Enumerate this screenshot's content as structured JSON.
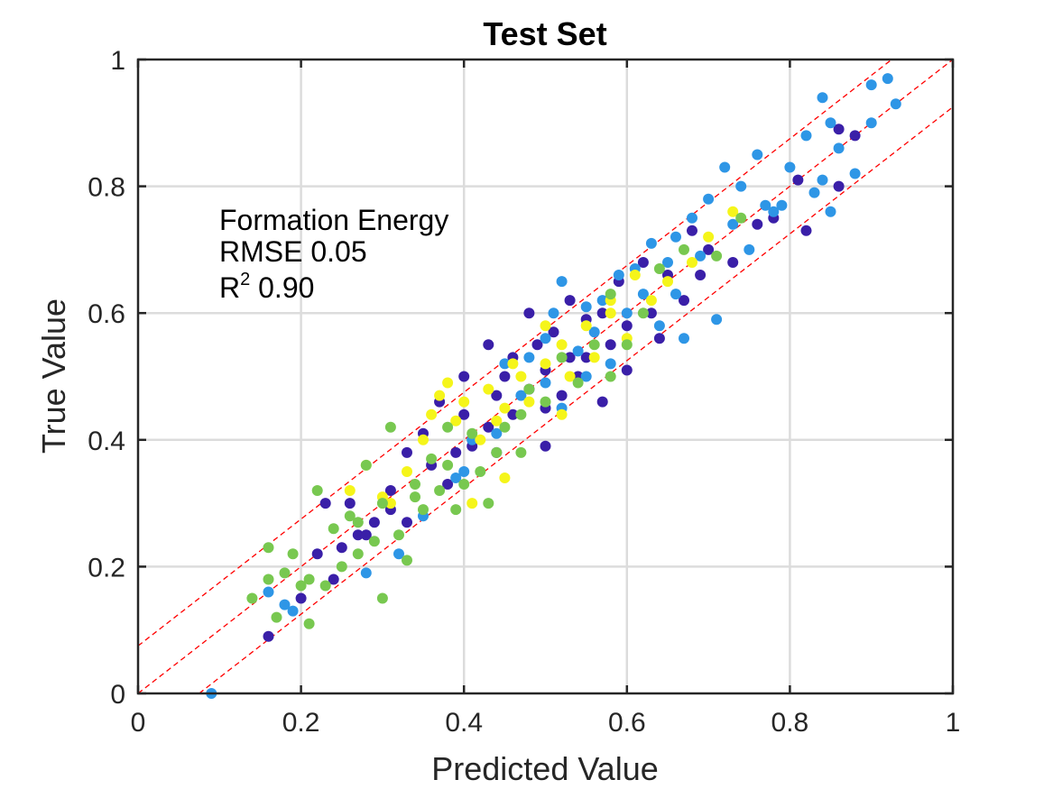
{
  "chart_data": {
    "type": "scatter",
    "title": "Test Set",
    "xlabel": "Predicted Value",
    "ylabel": "True Value",
    "xlim": [
      0,
      1
    ],
    "ylim": [
      0,
      1
    ],
    "xticks": [
      "0",
      "0.2",
      "0.4",
      "0.6",
      "0.8",
      "1"
    ],
    "yticks": [
      "0",
      "0.2",
      "0.4",
      "0.6",
      "0.8",
      "1"
    ],
    "grid": true,
    "annotation": {
      "line1": "Formation Energy",
      "line2": "RMSE 0.05",
      "line3_prefix": "R",
      "line3_sup": "2",
      "line3_value": " 0.90"
    },
    "reference_lines": [
      {
        "kind": "identity",
        "intercept": 0,
        "color": "#ff0000"
      },
      {
        "kind": "upper-band",
        "intercept": 0.075,
        "color": "#ff0000"
      },
      {
        "kind": "lower-band",
        "intercept": -0.075,
        "color": "#ff0000"
      }
    ],
    "series": [
      {
        "color": "#3a1fa8",
        "points": [
          [
            0.16,
            0.09
          ],
          [
            0.2,
            0.15
          ],
          [
            0.22,
            0.22
          ],
          [
            0.23,
            0.3
          ],
          [
            0.25,
            0.23
          ],
          [
            0.26,
            0.3
          ],
          [
            0.27,
            0.25
          ],
          [
            0.29,
            0.27
          ],
          [
            0.31,
            0.29
          ],
          [
            0.31,
            0.32
          ],
          [
            0.33,
            0.38
          ],
          [
            0.35,
            0.41
          ],
          [
            0.36,
            0.36
          ],
          [
            0.37,
            0.46
          ],
          [
            0.39,
            0.38
          ],
          [
            0.4,
            0.5
          ],
          [
            0.4,
            0.44
          ],
          [
            0.41,
            0.39
          ],
          [
            0.43,
            0.55
          ],
          [
            0.43,
            0.42
          ],
          [
            0.44,
            0.47
          ],
          [
            0.45,
            0.5
          ],
          [
            0.46,
            0.44
          ],
          [
            0.46,
            0.53
          ],
          [
            0.48,
            0.48
          ],
          [
            0.49,
            0.55
          ],
          [
            0.5,
            0.45
          ],
          [
            0.5,
            0.51
          ],
          [
            0.51,
            0.57
          ],
          [
            0.52,
            0.47
          ],
          [
            0.53,
            0.62
          ],
          [
            0.54,
            0.5
          ],
          [
            0.55,
            0.59
          ],
          [
            0.55,
            0.53
          ],
          [
            0.57,
            0.46
          ],
          [
            0.57,
            0.6
          ],
          [
            0.58,
            0.55
          ],
          [
            0.59,
            0.65
          ],
          [
            0.6,
            0.58
          ],
          [
            0.6,
            0.51
          ],
          [
            0.62,
            0.68
          ],
          [
            0.63,
            0.6
          ],
          [
            0.64,
            0.56
          ],
          [
            0.65,
            0.66
          ],
          [
            0.67,
            0.62
          ],
          [
            0.68,
            0.73
          ],
          [
            0.69,
            0.66
          ],
          [
            0.7,
            0.7
          ],
          [
            0.73,
            0.68
          ],
          [
            0.76,
            0.74
          ],
          [
            0.78,
            0.75
          ],
          [
            0.81,
            0.81
          ],
          [
            0.82,
            0.73
          ],
          [
            0.86,
            0.89
          ],
          [
            0.86,
            0.8
          ],
          [
            0.88,
            0.88
          ],
          [
            0.53,
            0.53
          ],
          [
            0.5,
            0.39
          ],
          [
            0.44,
            0.38
          ],
          [
            0.38,
            0.33
          ],
          [
            0.33,
            0.27
          ],
          [
            0.28,
            0.25
          ],
          [
            0.24,
            0.18
          ],
          [
            0.48,
            0.6
          ]
        ]
      },
      {
        "color": "#2e96e6",
        "points": [
          [
            0.09,
            0.0
          ],
          [
            0.16,
            0.16
          ],
          [
            0.18,
            0.14
          ],
          [
            0.19,
            0.13
          ],
          [
            0.28,
            0.19
          ],
          [
            0.32,
            0.22
          ],
          [
            0.35,
            0.28
          ],
          [
            0.39,
            0.34
          ],
          [
            0.41,
            0.4
          ],
          [
            0.44,
            0.41
          ],
          [
            0.45,
            0.52
          ],
          [
            0.47,
            0.47
          ],
          [
            0.48,
            0.53
          ],
          [
            0.5,
            0.49
          ],
          [
            0.5,
            0.56
          ],
          [
            0.51,
            0.6
          ],
          [
            0.52,
            0.65
          ],
          [
            0.52,
            0.45
          ],
          [
            0.54,
            0.54
          ],
          [
            0.55,
            0.61
          ],
          [
            0.56,
            0.57
          ],
          [
            0.57,
            0.62
          ],
          [
            0.58,
            0.52
          ],
          [
            0.59,
            0.66
          ],
          [
            0.6,
            0.6
          ],
          [
            0.61,
            0.67
          ],
          [
            0.62,
            0.63
          ],
          [
            0.63,
            0.71
          ],
          [
            0.64,
            0.58
          ],
          [
            0.65,
            0.68
          ],
          [
            0.66,
            0.72
          ],
          [
            0.67,
            0.56
          ],
          [
            0.68,
            0.75
          ],
          [
            0.69,
            0.69
          ],
          [
            0.7,
            0.78
          ],
          [
            0.71,
            0.59
          ],
          [
            0.72,
            0.83
          ],
          [
            0.73,
            0.74
          ],
          [
            0.74,
            0.8
          ],
          [
            0.75,
            0.7
          ],
          [
            0.76,
            0.85
          ],
          [
            0.77,
            0.77
          ],
          [
            0.78,
            0.76
          ],
          [
            0.8,
            0.83
          ],
          [
            0.82,
            0.88
          ],
          [
            0.83,
            0.79
          ],
          [
            0.84,
            0.81
          ],
          [
            0.85,
            0.76
          ],
          [
            0.85,
            0.9
          ],
          [
            0.86,
            0.86
          ],
          [
            0.88,
            0.82
          ],
          [
            0.9,
            0.9
          ],
          [
            0.9,
            0.96
          ],
          [
            0.93,
            0.93
          ],
          [
            0.92,
            0.97
          ],
          [
            0.84,
            0.94
          ],
          [
            0.79,
            0.77
          ],
          [
            0.66,
            0.63
          ],
          [
            0.55,
            0.5
          ],
          [
            0.4,
            0.35
          ]
        ]
      },
      {
        "color": "#f5f51a",
        "points": [
          [
            0.26,
            0.32
          ],
          [
            0.28,
            0.36
          ],
          [
            0.31,
            0.3
          ],
          [
            0.33,
            0.35
          ],
          [
            0.35,
            0.4
          ],
          [
            0.37,
            0.47
          ],
          [
            0.38,
            0.49
          ],
          [
            0.39,
            0.43
          ],
          [
            0.4,
            0.46
          ],
          [
            0.42,
            0.4
          ],
          [
            0.43,
            0.48
          ],
          [
            0.44,
            0.43
          ],
          [
            0.45,
            0.34
          ],
          [
            0.46,
            0.52
          ],
          [
            0.47,
            0.5
          ],
          [
            0.48,
            0.46
          ],
          [
            0.5,
            0.58
          ],
          [
            0.5,
            0.52
          ],
          [
            0.52,
            0.55
          ],
          [
            0.53,
            0.5
          ],
          [
            0.55,
            0.58
          ],
          [
            0.56,
            0.53
          ],
          [
            0.58,
            0.62
          ],
          [
            0.6,
            0.56
          ],
          [
            0.61,
            0.66
          ],
          [
            0.63,
            0.62
          ],
          [
            0.65,
            0.65
          ],
          [
            0.68,
            0.68
          ],
          [
            0.7,
            0.72
          ],
          [
            0.73,
            0.76
          ],
          [
            0.41,
            0.3
          ],
          [
            0.45,
            0.45
          ],
          [
            0.58,
            0.6
          ],
          [
            0.3,
            0.31
          ],
          [
            0.36,
            0.44
          ],
          [
            0.52,
            0.44
          ]
        ]
      },
      {
        "color": "#78c850",
        "points": [
          [
            0.14,
            0.15
          ],
          [
            0.16,
            0.23
          ],
          [
            0.16,
            0.18
          ],
          [
            0.17,
            0.12
          ],
          [
            0.18,
            0.19
          ],
          [
            0.19,
            0.22
          ],
          [
            0.2,
            0.17
          ],
          [
            0.21,
            0.18
          ],
          [
            0.21,
            0.11
          ],
          [
            0.22,
            0.32
          ],
          [
            0.23,
            0.17
          ],
          [
            0.24,
            0.26
          ],
          [
            0.25,
            0.2
          ],
          [
            0.26,
            0.28
          ],
          [
            0.27,
            0.22
          ],
          [
            0.28,
            0.36
          ],
          [
            0.29,
            0.24
          ],
          [
            0.3,
            0.15
          ],
          [
            0.3,
            0.3
          ],
          [
            0.31,
            0.42
          ],
          [
            0.32,
            0.25
          ],
          [
            0.33,
            0.21
          ],
          [
            0.34,
            0.33
          ],
          [
            0.35,
            0.29
          ],
          [
            0.36,
            0.37
          ],
          [
            0.37,
            0.32
          ],
          [
            0.38,
            0.42
          ],
          [
            0.39,
            0.29
          ],
          [
            0.4,
            0.33
          ],
          [
            0.41,
            0.41
          ],
          [
            0.42,
            0.35
          ],
          [
            0.43,
            0.3
          ],
          [
            0.44,
            0.38
          ],
          [
            0.45,
            0.42
          ],
          [
            0.47,
            0.44
          ],
          [
            0.48,
            0.48
          ],
          [
            0.5,
            0.46
          ],
          [
            0.52,
            0.53
          ],
          [
            0.54,
            0.49
          ],
          [
            0.56,
            0.55
          ],
          [
            0.58,
            0.5
          ],
          [
            0.6,
            0.55
          ],
          [
            0.62,
            0.6
          ],
          [
            0.64,
            0.67
          ],
          [
            0.67,
            0.7
          ],
          [
            0.71,
            0.69
          ],
          [
            0.74,
            0.75
          ],
          [
            0.58,
            0.63
          ],
          [
            0.47,
            0.38
          ],
          [
            0.38,
            0.36
          ],
          [
            0.34,
            0.31
          ],
          [
            0.27,
            0.27
          ]
        ]
      }
    ]
  }
}
